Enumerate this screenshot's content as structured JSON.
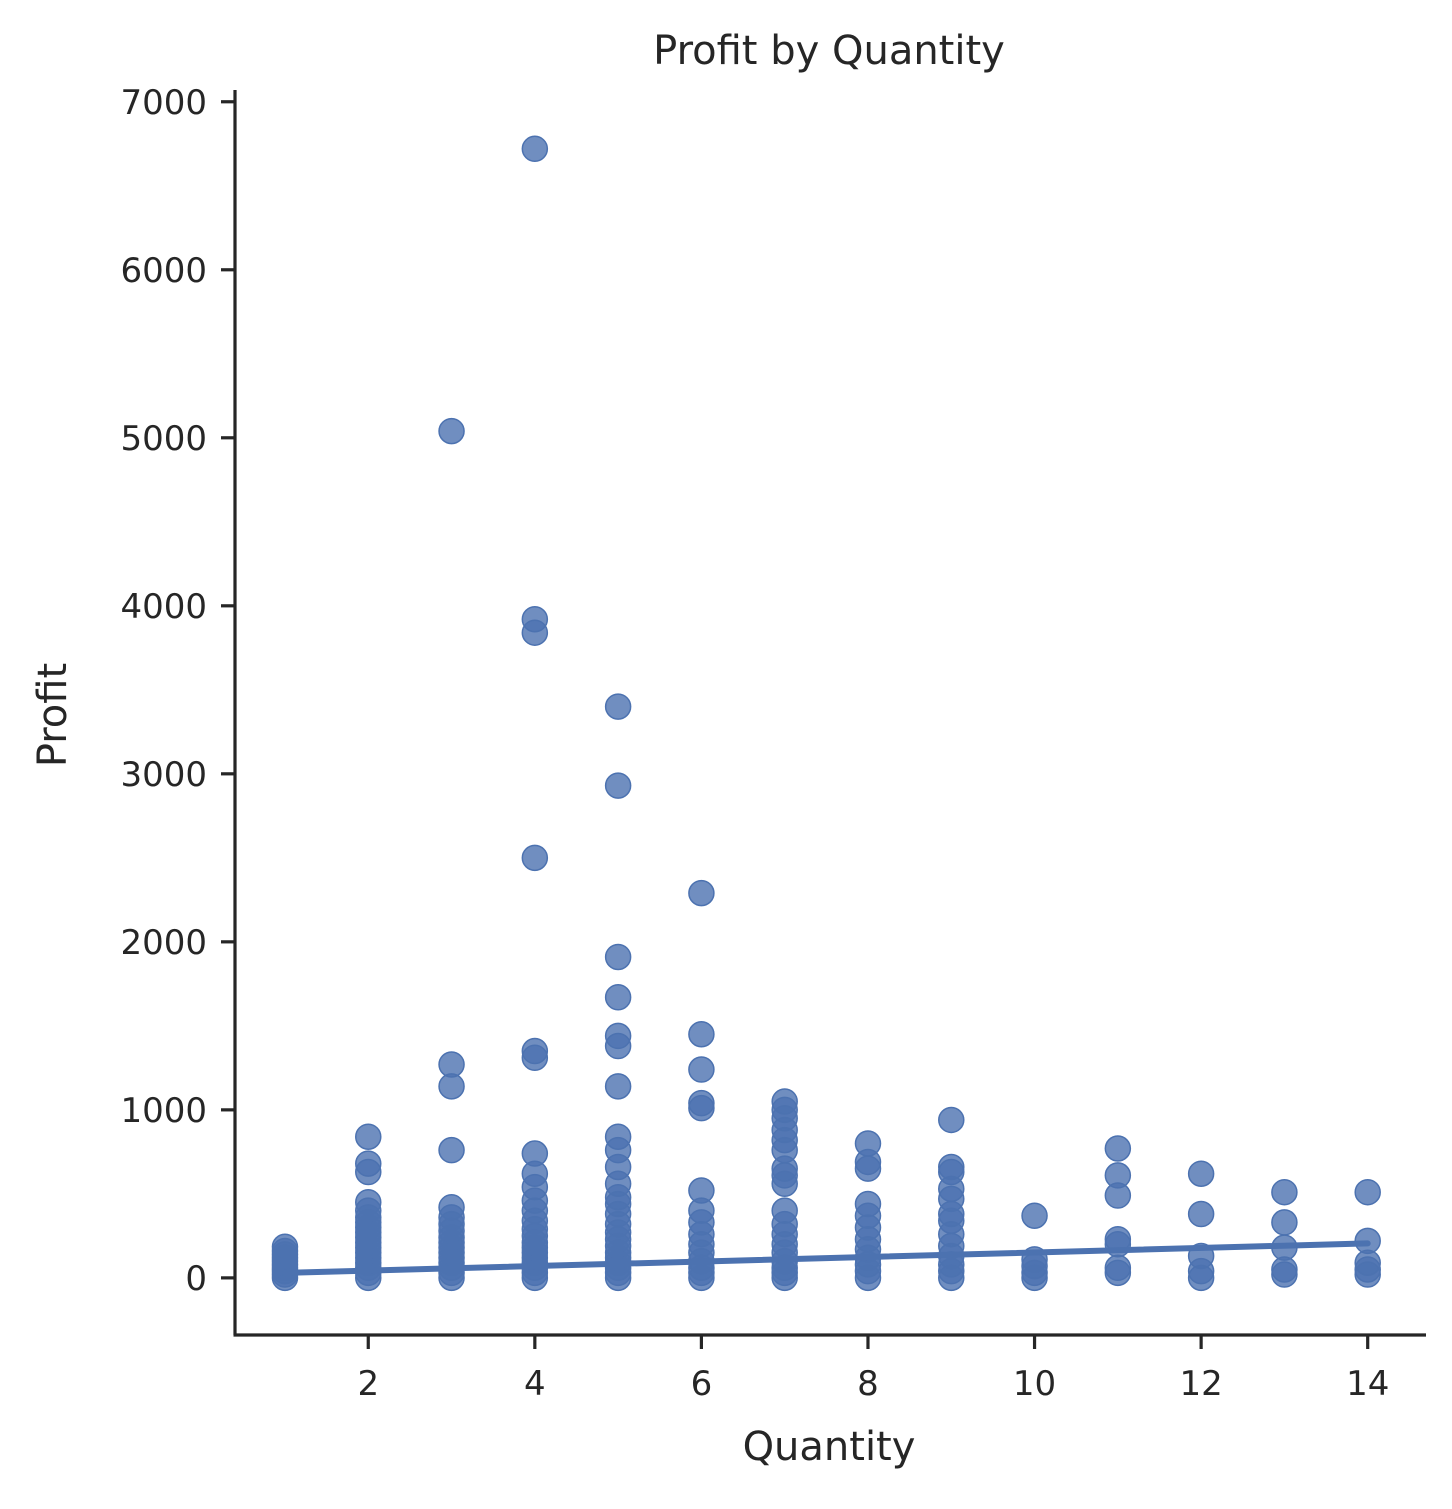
{
  "chart_data": {
    "type": "scatter",
    "title": "Profit by Quantity",
    "xlabel": "Quantity",
    "ylabel": "Profit",
    "xlim": [
      0.4,
      14.7
    ],
    "ylim": [
      -340,
      7070
    ],
    "xticks": [
      2,
      4,
      6,
      8,
      10,
      12,
      14
    ],
    "yticks": [
      0,
      1000,
      2000,
      3000,
      4000,
      5000,
      6000,
      7000
    ],
    "grid": false,
    "color": "#4c72b0",
    "series": [
      {
        "points": [
          [
            1,
            0
          ],
          [
            1,
            20
          ],
          [
            1,
            40
          ],
          [
            1,
            60
          ],
          [
            1,
            80
          ],
          [
            1,
            100
          ],
          [
            1,
            120
          ],
          [
            1,
            140
          ],
          [
            1,
            160
          ],
          [
            1,
            185
          ],
          [
            2,
            0
          ],
          [
            2,
            30
          ],
          [
            2,
            60
          ],
          [
            2,
            90
          ],
          [
            2,
            120
          ],
          [
            2,
            150
          ],
          [
            2,
            180
          ],
          [
            2,
            210
          ],
          [
            2,
            240
          ],
          [
            2,
            270
          ],
          [
            2,
            300
          ],
          [
            2,
            330
          ],
          [
            2,
            360
          ],
          [
            2,
            400
          ],
          [
            2,
            450
          ],
          [
            2,
            630
          ],
          [
            2,
            680
          ],
          [
            2,
            840
          ],
          [
            3,
            0
          ],
          [
            3,
            30
          ],
          [
            3,
            60
          ],
          [
            3,
            90
          ],
          [
            3,
            120
          ],
          [
            3,
            150
          ],
          [
            3,
            180
          ],
          [
            3,
            210
          ],
          [
            3,
            240
          ],
          [
            3,
            280
          ],
          [
            3,
            320
          ],
          [
            3,
            360
          ],
          [
            3,
            420
          ],
          [
            3,
            760
          ],
          [
            3,
            1140
          ],
          [
            3,
            1270
          ],
          [
            3,
            5040
          ],
          [
            4,
            0
          ],
          [
            4,
            30
          ],
          [
            4,
            60
          ],
          [
            4,
            90
          ],
          [
            4,
            120
          ],
          [
            4,
            150
          ],
          [
            4,
            180
          ],
          [
            4,
            210
          ],
          [
            4,
            250
          ],
          [
            4,
            290
          ],
          [
            4,
            340
          ],
          [
            4,
            400
          ],
          [
            4,
            460
          ],
          [
            4,
            540
          ],
          [
            4,
            620
          ],
          [
            4,
            740
          ],
          [
            4,
            1310
          ],
          [
            4,
            1350
          ],
          [
            4,
            2500
          ],
          [
            4,
            3840
          ],
          [
            4,
            3920
          ],
          [
            4,
            6720
          ],
          [
            5,
            0
          ],
          [
            5,
            30
          ],
          [
            5,
            60
          ],
          [
            5,
            90
          ],
          [
            5,
            120
          ],
          [
            5,
            150
          ],
          [
            5,
            190
          ],
          [
            5,
            230
          ],
          [
            5,
            270
          ],
          [
            5,
            320
          ],
          [
            5,
            380
          ],
          [
            5,
            440
          ],
          [
            5,
            480
          ],
          [
            5,
            560
          ],
          [
            5,
            660
          ],
          [
            5,
            760
          ],
          [
            5,
            840
          ],
          [
            5,
            1140
          ],
          [
            5,
            1380
          ],
          [
            5,
            1440
          ],
          [
            5,
            1670
          ],
          [
            5,
            1910
          ],
          [
            5,
            2930
          ],
          [
            5,
            3400
          ],
          [
            6,
            0
          ],
          [
            6,
            30
          ],
          [
            6,
            60
          ],
          [
            6,
            100
          ],
          [
            6,
            150
          ],
          [
            6,
            200
          ],
          [
            6,
            260
          ],
          [
            6,
            330
          ],
          [
            6,
            400
          ],
          [
            6,
            520
          ],
          [
            6,
            1010
          ],
          [
            6,
            1040
          ],
          [
            6,
            1240
          ],
          [
            6,
            1450
          ],
          [
            6,
            2290
          ],
          [
            7,
            0
          ],
          [
            7,
            30
          ],
          [
            7,
            60
          ],
          [
            7,
            100
          ],
          [
            7,
            150
          ],
          [
            7,
            200
          ],
          [
            7,
            260
          ],
          [
            7,
            320
          ],
          [
            7,
            400
          ],
          [
            7,
            560
          ],
          [
            7,
            610
          ],
          [
            7,
            650
          ],
          [
            7,
            760
          ],
          [
            7,
            820
          ],
          [
            7,
            880
          ],
          [
            7,
            950
          ],
          [
            7,
            1000
          ],
          [
            7,
            1050
          ],
          [
            8,
            0
          ],
          [
            8,
            40
          ],
          [
            8,
            80
          ],
          [
            8,
            120
          ],
          [
            8,
            170
          ],
          [
            8,
            230
          ],
          [
            8,
            300
          ],
          [
            8,
            370
          ],
          [
            8,
            440
          ],
          [
            8,
            650
          ],
          [
            8,
            690
          ],
          [
            8,
            800
          ],
          [
            9,
            0
          ],
          [
            9,
            40
          ],
          [
            9,
            80
          ],
          [
            9,
            130
          ],
          [
            9,
            190
          ],
          [
            9,
            260
          ],
          [
            9,
            340
          ],
          [
            9,
            380
          ],
          [
            9,
            470
          ],
          [
            9,
            530
          ],
          [
            9,
            630
          ],
          [
            9,
            660
          ],
          [
            9,
            940
          ],
          [
            10,
            0
          ],
          [
            10,
            30
          ],
          [
            10,
            70
          ],
          [
            10,
            110
          ],
          [
            10,
            370
          ],
          [
            11,
            30
          ],
          [
            11,
            60
          ],
          [
            11,
            200
          ],
          [
            11,
            230
          ],
          [
            11,
            490
          ],
          [
            11,
            610
          ],
          [
            11,
            770
          ],
          [
            12,
            0
          ],
          [
            12,
            40
          ],
          [
            12,
            130
          ],
          [
            12,
            380
          ],
          [
            12,
            620
          ],
          [
            13,
            20
          ],
          [
            13,
            50
          ],
          [
            13,
            180
          ],
          [
            13,
            330
          ],
          [
            13,
            510
          ],
          [
            14,
            20
          ],
          [
            14,
            50
          ],
          [
            14,
            90
          ],
          [
            14,
            220
          ],
          [
            14,
            510
          ]
        ]
      }
    ],
    "regression": {
      "x": [
        1,
        14
      ],
      "y": [
        30,
        205
      ]
    }
  }
}
